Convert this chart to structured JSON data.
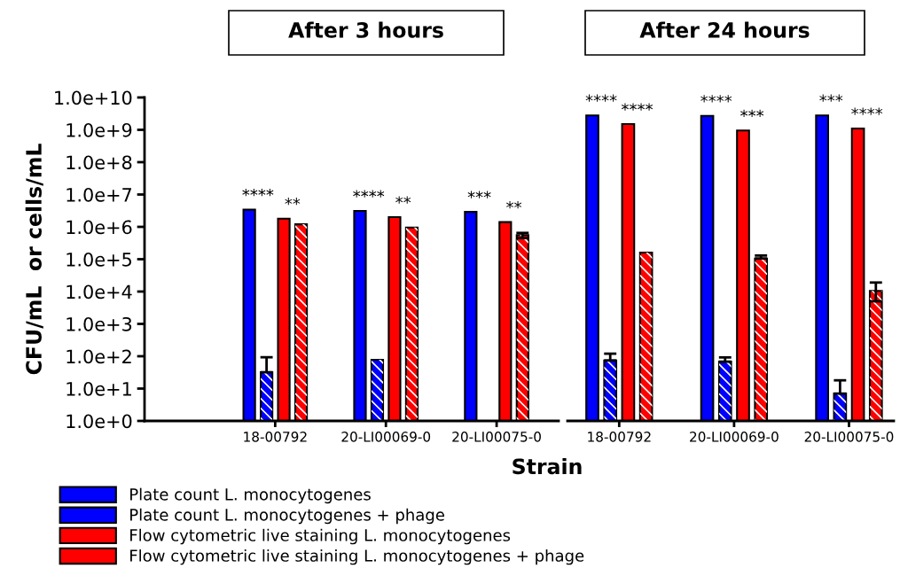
{
  "chart_data": [
    {
      "type": "bar",
      "title": "After 3 hours",
      "ylabel": "CFU/mL  or cells/mL",
      "xlabel": "Strain",
      "log": true,
      "ylim": [
        1,
        10000000000
      ],
      "yticks": [
        {
          "value": 1,
          "label": "1.0e+0"
        },
        {
          "value": 10,
          "label": "1.0e+1"
        },
        {
          "value": 100,
          "label": "1.0e+2"
        },
        {
          "value": 1000,
          "label": "1.0e+3"
        },
        {
          "value": 10000,
          "label": "1.0e+4"
        },
        {
          "value": 100000,
          "label": "1.0e+5"
        },
        {
          "value": 1000000,
          "label": "1.0e+6"
        },
        {
          "value": 10000000,
          "label": "1.0e+7"
        },
        {
          "value": 100000000,
          "label": "1.0e+8"
        },
        {
          "value": 1000000000,
          "label": "1.0e+9"
        },
        {
          "value": 10000000000,
          "label": "1.0e+10"
        }
      ],
      "categories": [
        "18-00792",
        "20-LI00069-0",
        "20-LI00075-0"
      ],
      "legend": "bottom",
      "grid": false,
      "series": [
        {
          "name": "Plate count L. monocytogenes",
          "color": "#0000ff",
          "values": [
            3400000,
            3100000,
            2900000
          ]
        },
        {
          "name": "Plate count L. monocytogenes + phage",
          "color": "#0000ff",
          "values": [
            32,
            78,
            null
          ],
          "errors": [
            [
              32,
              93
            ],
            null,
            null
          ]
        },
        {
          "name": "Flow cytometric live staining L. monocytogenes",
          "color": "#ff0000",
          "values": [
            1800000,
            2000000,
            1400000
          ]
        },
        {
          "name": "Flow cytometric live staining L. monocytogenes + phage",
          "color": "#ff0000",
          "values": [
            1200000,
            950000,
            560000
          ],
          "errors": [
            null,
            null,
            [
              450000,
              650000
            ]
          ]
        }
      ],
      "annotations": [
        "****",
        "**",
        "****",
        "**",
        "***",
        "**"
      ]
    },
    {
      "type": "bar",
      "title": "After 24 hours",
      "log": true,
      "ylim": [
        1,
        10000000000
      ],
      "tick_labels": "x",
      "categories": [
        "18-00792",
        "20-LI00069-0",
        "20-LI00075-0"
      ],
      "grid": false,
      "series": [
        {
          "color": "#0000ff",
          "values": [
            2800000000,
            2700000000,
            2800000000
          ]
        },
        {
          "color": "#0000ff",
          "values": [
            74,
            68,
            7
          ],
          "errors": [
            [
              74,
              120
            ],
            [
              68,
              92
            ],
            [
              7,
              18
            ]
          ]
        },
        {
          "color": "#ff0000",
          "values": [
            1500000000,
            950000000,
            1100000000
          ]
        },
        {
          "color": "#ff0000",
          "values": [
            160000,
            105000,
            10500
          ],
          "errors": [
            null,
            [
              105000,
              130000
            ],
            [
              5000,
              19000
            ]
          ]
        }
      ],
      "annotations": [
        "****",
        "****",
        "****",
        "***",
        "***",
        "****"
      ]
    }
  ]
}
